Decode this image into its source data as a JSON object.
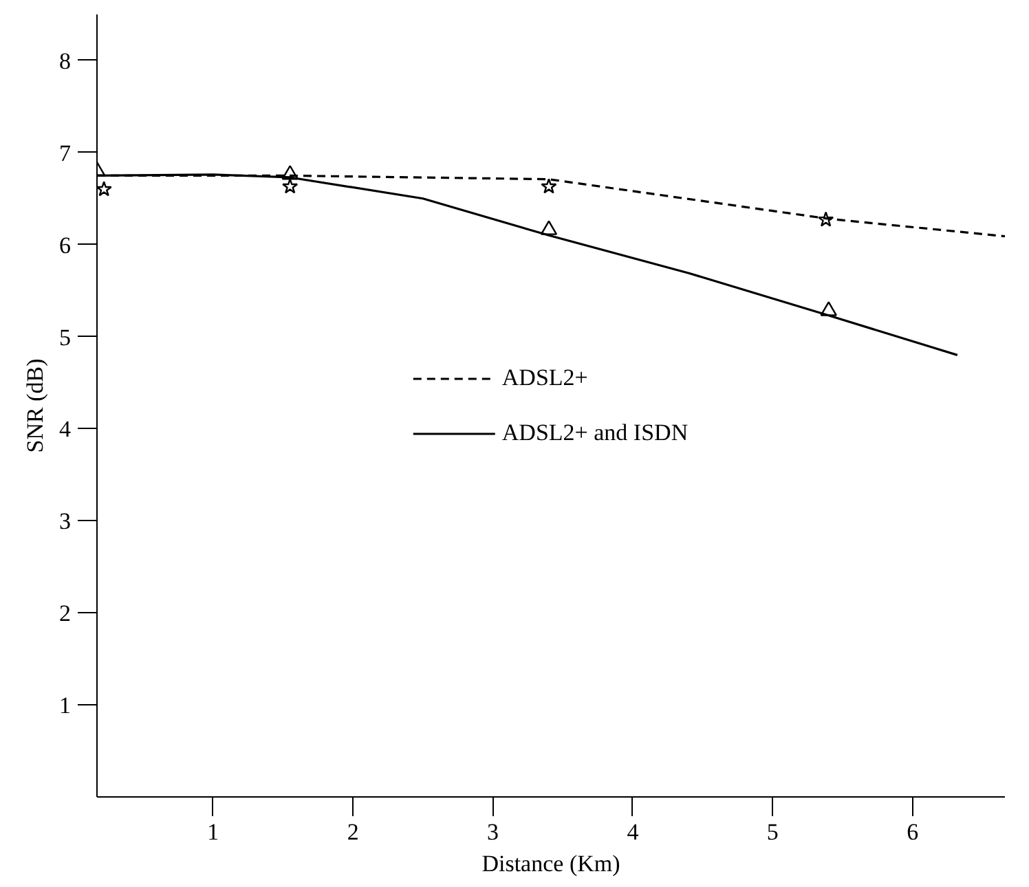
{
  "chart_data": {
    "type": "line",
    "xlabel": "Distance (Km)",
    "ylabel": "SNR (dB)",
    "xlim": [
      0.17,
      6.66
    ],
    "ylim": [
      0,
      8.5
    ],
    "xticks": [
      1,
      2,
      3,
      4,
      5,
      6
    ],
    "yticks": [
      1,
      2,
      3,
      4,
      5,
      6,
      7,
      8
    ],
    "grid": false,
    "legend": "center",
    "series": [
      {
        "name": "ADSL2+",
        "line_style": "dashed",
        "color": "#000000",
        "x": [
          0.17,
          1.5,
          3.4,
          5.4,
          6.66
        ],
        "values": [
          6.75,
          6.75,
          6.71,
          6.28,
          6.09
        ]
      },
      {
        "name": "ADSL2+ and ISDN",
        "line_style": "solid",
        "color": "#000000",
        "x": [
          0.17,
          1.0,
          1.55,
          2.5,
          3.4,
          4.4,
          5.4,
          6.32
        ],
        "values": [
          6.75,
          6.76,
          6.73,
          6.5,
          6.1,
          5.69,
          5.23,
          4.8
        ]
      },
      {
        "type": "scatter",
        "marker": "star",
        "color": "#000000",
        "x": [
          0.22,
          1.55,
          3.4,
          5.38
        ],
        "values": [
          6.6,
          6.63,
          6.63,
          6.27
        ]
      },
      {
        "type": "scatter",
        "marker": "triangle",
        "color": "#000000",
        "x": [
          0.17,
          1.55,
          3.4,
          5.4
        ],
        "values": [
          6.8,
          6.76,
          6.16,
          5.28
        ]
      }
    ]
  }
}
